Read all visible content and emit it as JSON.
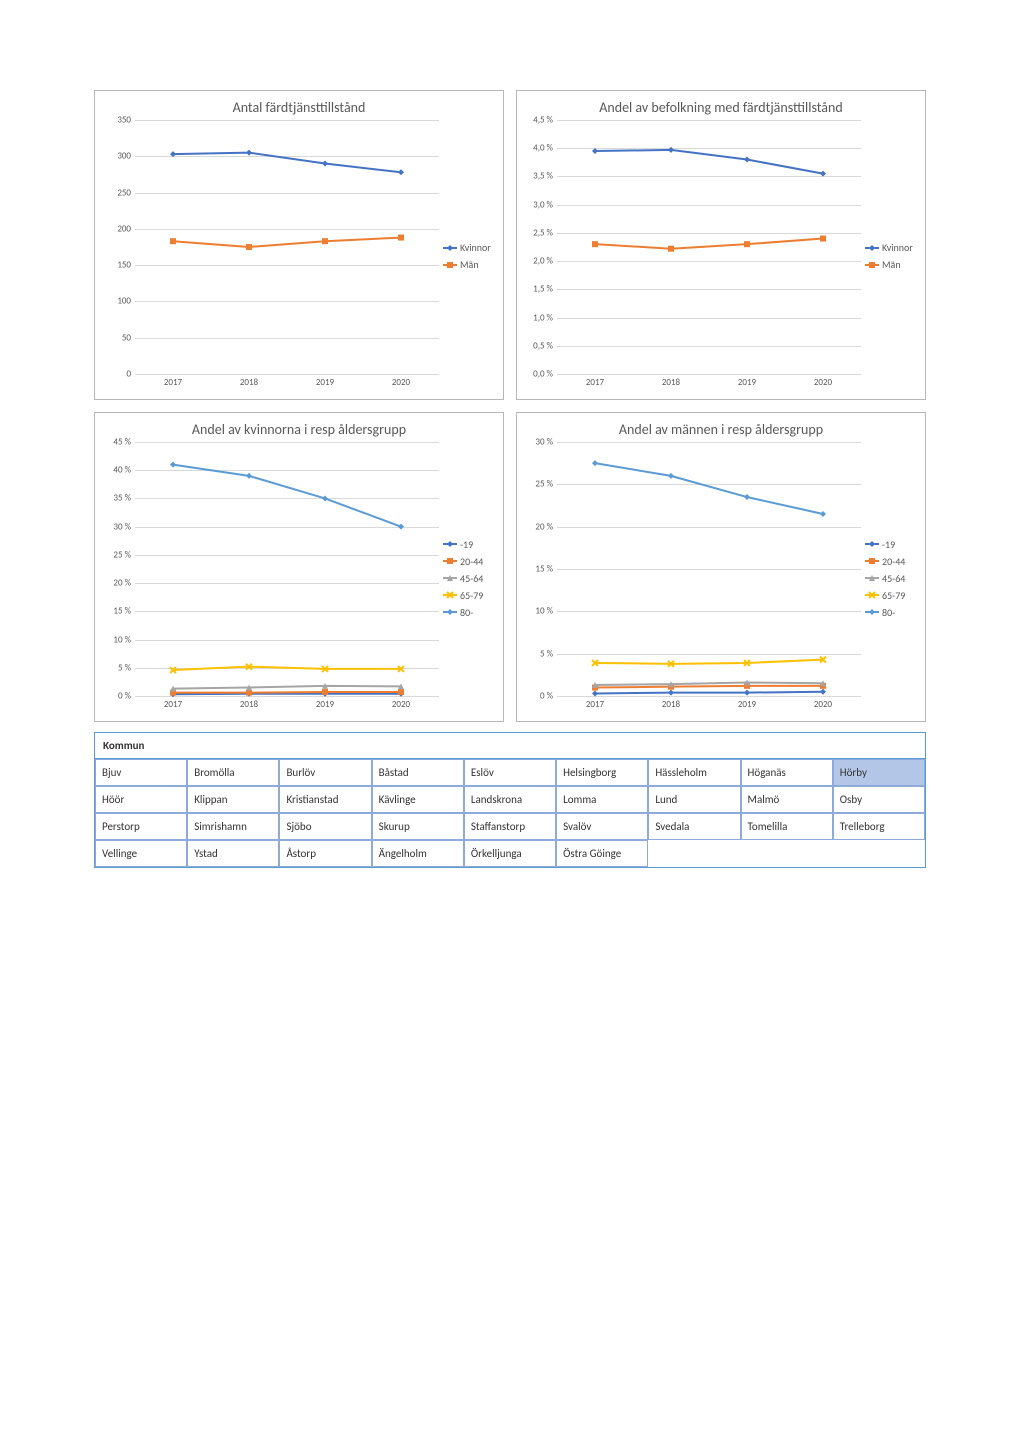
{
  "charts": [
    {
      "title": "Antal färdtjänsttillstånd",
      "ylim": [
        0,
        350
      ],
      "ytick_step": 50,
      "y_format": "int",
      "x_categories": [
        "2017",
        "2018",
        "2019",
        "2020"
      ],
      "grid_color": "#d9d9d9",
      "background": "#ffffff",
      "series": [
        {
          "name": "Kvinnor",
          "color": "#4472c4",
          "marker": "diamond",
          "values": [
            303,
            305,
            290,
            278
          ]
        },
        {
          "name": "Män",
          "color": "#ed7d31",
          "marker": "square",
          "values": [
            183,
            175,
            183,
            188
          ]
        }
      ]
    },
    {
      "title": "Andel av befolkning med färdtjänsttillstånd",
      "ylim": [
        0,
        4.5
      ],
      "ytick_step": 0.5,
      "y_format": "pct1",
      "x_categories": [
        "2017",
        "2018",
        "2019",
        "2020"
      ],
      "grid_color": "#d9d9d9",
      "background": "#ffffff",
      "series": [
        {
          "name": "Kvinnor",
          "color": "#4472c4",
          "marker": "diamond",
          "values": [
            3.95,
            3.97,
            3.8,
            3.55
          ]
        },
        {
          "name": "Män",
          "color": "#ed7d31",
          "marker": "square",
          "values": [
            2.3,
            2.22,
            2.3,
            2.4
          ]
        }
      ]
    },
    {
      "title": "Andel av kvinnorna i resp åldersgrupp",
      "ylim": [
        0,
        45
      ],
      "ytick_step": 5,
      "y_format": "pct0",
      "x_categories": [
        "2017",
        "2018",
        "2019",
        "2020"
      ],
      "grid_color": "#d9d9d9",
      "background": "#ffffff",
      "series": [
        {
          "name": "-19",
          "color": "#4472c4",
          "marker": "diamond",
          "values": [
            0.3,
            0.4,
            0.4,
            0.4
          ]
        },
        {
          "name": "20-44",
          "color": "#ed7d31",
          "marker": "square",
          "values": [
            0.6,
            0.6,
            0.7,
            0.7
          ]
        },
        {
          "name": "45-64",
          "color": "#a5a5a5",
          "marker": "triangle",
          "values": [
            1.3,
            1.5,
            1.8,
            1.7
          ]
        },
        {
          "name": "65-79",
          "color": "#ffc000",
          "marker": "x",
          "values": [
            4.6,
            5.2,
            4.8,
            4.8
          ]
        },
        {
          "name": "80-",
          "color": "#5b9bd5",
          "marker": "diamond",
          "values": [
            41.0,
            39.0,
            35.0,
            30.0
          ]
        }
      ]
    },
    {
      "title": "Andel av männen i resp åldersgrupp",
      "ylim": [
        0,
        30
      ],
      "ytick_step": 5,
      "y_format": "pct0",
      "x_categories": [
        "2017",
        "2018",
        "2019",
        "2020"
      ],
      "grid_color": "#d9d9d9",
      "background": "#ffffff",
      "series": [
        {
          "name": "-19",
          "color": "#4472c4",
          "marker": "diamond",
          "values": [
            0.3,
            0.4,
            0.4,
            0.5
          ]
        },
        {
          "name": "20-44",
          "color": "#ed7d31",
          "marker": "square",
          "values": [
            1.0,
            1.1,
            1.2,
            1.2
          ]
        },
        {
          "name": "45-64",
          "color": "#a5a5a5",
          "marker": "triangle",
          "values": [
            1.3,
            1.4,
            1.6,
            1.5
          ]
        },
        {
          "name": "65-79",
          "color": "#ffc000",
          "marker": "x",
          "values": [
            3.9,
            3.8,
            3.9,
            4.3
          ]
        },
        {
          "name": "80-",
          "color": "#5b9bd5",
          "marker": "diamond",
          "values": [
            27.5,
            26.0,
            23.5,
            21.5
          ]
        }
      ]
    }
  ],
  "kommun_table": {
    "header": "Kommun",
    "border_color": "#5b9bd5",
    "selected_color": "#b4c6e7",
    "selected": "Hörby",
    "items": [
      "Bjuv",
      "Bromölla",
      "Burlöv",
      "Båstad",
      "Eslöv",
      "Helsingborg",
      "Hässleholm",
      "Höganäs",
      "Hörby",
      "Höör",
      "Klippan",
      "Kristianstad",
      "Kävlinge",
      "Landskrona",
      "Lomma",
      "Lund",
      "Malmö",
      "Osby",
      "Perstorp",
      "Simrishamn",
      "Sjöbo",
      "Skurup",
      "Staffanstorp",
      "Svalöv",
      "Svedala",
      "Tomelilla",
      "Trelleborg",
      "Vellinge",
      "Ystad",
      "Åstorp",
      "Ängelholm",
      "Örkelljunga",
      "Östra Göinge"
    ]
  },
  "style": {
    "title_fontsize": 14,
    "title_color": "#595959",
    "axis_fontsize": 9,
    "axis_color": "#595959",
    "legend_fontsize": 10,
    "line_width": 2,
    "marker_size": 6
  }
}
